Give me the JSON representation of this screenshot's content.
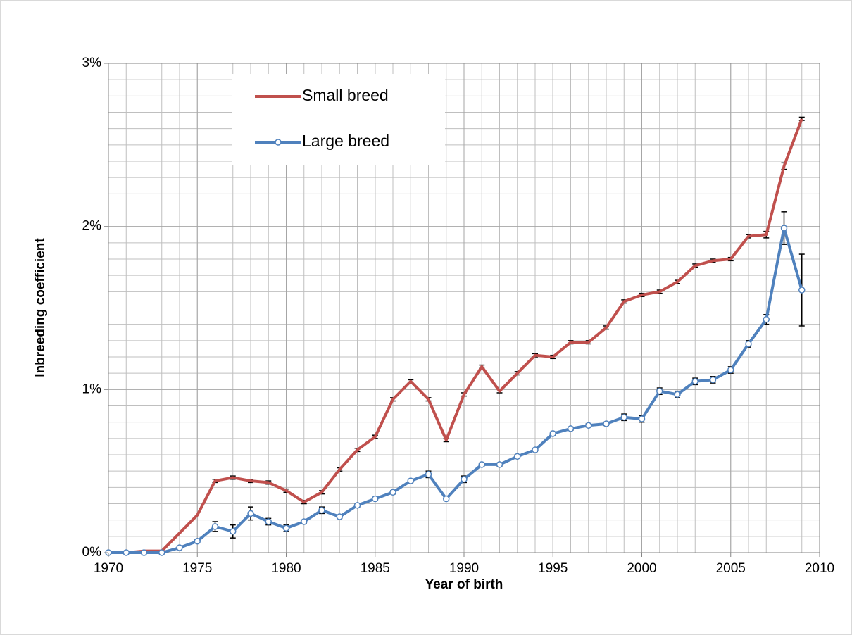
{
  "chart_data": {
    "type": "line",
    "x_label": "Year of birth",
    "y_label": "Inbreeding coefficient",
    "x": [
      1970,
      1971,
      1972,
      1973,
      1974,
      1975,
      1976,
      1977,
      1978,
      1979,
      1980,
      1981,
      1982,
      1983,
      1984,
      1985,
      1986,
      1987,
      1988,
      1989,
      1990,
      1991,
      1992,
      1993,
      1994,
      1995,
      1996,
      1997,
      1998,
      1999,
      2000,
      2001,
      2002,
      2003,
      2004,
      2005,
      2006,
      2007,
      2008,
      2009
    ],
    "series": [
      {
        "name": "Small breed",
        "color": "#c0504d",
        "markers": false,
        "values": [
          0,
          0,
          0.01,
          0.01,
          0.12,
          0.23,
          0.44,
          0.46,
          0.44,
          0.43,
          0.38,
          0.31,
          0.37,
          0.51,
          0.63,
          0.71,
          0.94,
          1.05,
          0.94,
          0.69,
          0.97,
          1.14,
          0.99,
          1.1,
          1.21,
          1.2,
          1.29,
          1.29,
          1.38,
          1.54,
          1.58,
          1.6,
          1.66,
          1.76,
          1.79,
          1.8,
          1.94,
          1.95,
          2.37,
          2.66
        ],
        "errors": [
          0,
          0,
          0,
          0,
          0,
          0,
          0.01,
          0.01,
          0.01,
          0.01,
          0.01,
          0.01,
          0.01,
          0.01,
          0.01,
          0.01,
          0.01,
          0.01,
          0.01,
          0.01,
          0.01,
          0.01,
          0.01,
          0.01,
          0.01,
          0.01,
          0.01,
          0.01,
          0.01,
          0.01,
          0.01,
          0.01,
          0.01,
          0.01,
          0.01,
          0.01,
          0.01,
          0.02,
          0.02,
          0.01
        ]
      },
      {
        "name": "Large breed",
        "color": "#4f81bd",
        "markers": true,
        "values": [
          0,
          0,
          0,
          0,
          0.03,
          0.07,
          0.16,
          0.13,
          0.24,
          0.19,
          0.15,
          0.19,
          0.26,
          0.22,
          0.29,
          0.33,
          0.37,
          0.44,
          0.48,
          0.33,
          0.45,
          0.54,
          0.54,
          0.59,
          0.63,
          0.73,
          0.76,
          0.78,
          0.79,
          0.83,
          0.82,
          0.99,
          0.97,
          1.05,
          1.06,
          1.12,
          1.28,
          1.43,
          1.99,
          1.61
        ],
        "errors": [
          0,
          0,
          0,
          0,
          0.01,
          0.01,
          0.03,
          0.04,
          0.04,
          0.02,
          0.02,
          0.01,
          0.02,
          0.01,
          0.01,
          0.01,
          0.01,
          0.01,
          0.02,
          0.01,
          0.02,
          0.01,
          0.01,
          0.01,
          0.01,
          0.01,
          0.01,
          0.01,
          0.01,
          0.02,
          0.02,
          0.02,
          0.02,
          0.02,
          0.02,
          0.02,
          0.02,
          0.03,
          0.1,
          0.22
        ]
      }
    ],
    "xlim": [
      1970,
      2010
    ],
    "xticks": [
      1970,
      1975,
      1980,
      1985,
      1990,
      1995,
      2000,
      2005,
      2010
    ],
    "ylim": [
      0,
      3
    ],
    "yticks": [
      {
        "value": 0,
        "label": "0%"
      },
      {
        "value": 1,
        "label": "1%"
      },
      {
        "value": 2,
        "label": "2%"
      },
      {
        "value": 3,
        "label": "3%"
      }
    ],
    "grid": true,
    "legend": "upper left"
  }
}
